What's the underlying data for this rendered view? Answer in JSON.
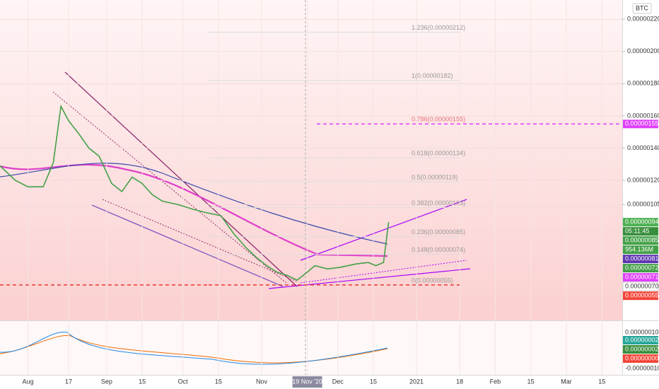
{
  "chart_data": {
    "type": "line",
    "currency": "BTC",
    "x": [
      "2020-07-21",
      "2020-07-27",
      "2020-08-01",
      "2020-08-07",
      "2020-08-11",
      "2020-08-14",
      "2020-08-17",
      "2020-08-21",
      "2020-08-25",
      "2020-08-29",
      "2020-09-03",
      "2020-09-07",
      "2020-09-11",
      "2020-09-15",
      "2020-09-19",
      "2020-09-23",
      "2020-09-29",
      "2020-10-05",
      "2020-10-10",
      "2020-10-16",
      "2020-10-21",
      "2020-10-26",
      "2020-10-30",
      "2020-11-03",
      "2020-11-07",
      "2020-11-11",
      "2020-11-15",
      "2020-11-19",
      "2020-11-22",
      "2020-11-27",
      "2020-12-02",
      "2020-12-08",
      "2020-12-13",
      "2020-12-16",
      "2020-12-19",
      "2020-12-21"
    ],
    "series": [
      {
        "color": "#43a047",
        "values": [
          1.29e-06,
          1.2e-06,
          1.16e-06,
          1.16e-06,
          1.31e-06,
          1.66e-06,
          1.57e-06,
          1.49e-06,
          1.4e-06,
          1.35e-06,
          1.18e-06,
          1.13e-06,
          1.22e-06,
          1.18e-06,
          1.11e-06,
          1.07e-06,
          1.05e-06,
          1.02e-06,
          1e-06,
          9.8e-07,
          8.7e-07,
          7.8e-07,
          7.2e-07,
          6.7e-07,
          6.3e-07,
          6.1e-07,
          5.8e-07,
          6.3e-07,
          6.7e-07,
          6.5e-07,
          6.6e-07,
          6.8e-07,
          6.9e-07,
          6.7e-07,
          6.9e-07,
          9.4e-07
        ]
      }
    ],
    "xlim": [
      "2020-07-21",
      "2021-03-23"
    ],
    "xticks": [
      {
        "value": "2020-08-01",
        "label": "Aug"
      },
      {
        "value": "2020-08-17",
        "label": "17"
      },
      {
        "value": "2020-09-01",
        "label": "Sep"
      },
      {
        "value": "2020-09-15",
        "label": "15"
      },
      {
        "value": "2020-10-01",
        "label": "Oct"
      },
      {
        "value": "2020-10-15",
        "label": "15"
      },
      {
        "value": "2020-11-01",
        "label": "Nov"
      },
      {
        "value": "2020-11-19",
        "label": "19 Nov '20"
      },
      {
        "value": "2020-12-01",
        "label": "Dec"
      },
      {
        "value": "2020-12-15",
        "label": "15"
      },
      {
        "value": "2021-01-01",
        "label": "2021"
      },
      {
        "value": "2021-01-18",
        "label": "18"
      },
      {
        "value": "2021-02-01",
        "label": "Feb"
      },
      {
        "value": "2021-02-15",
        "label": "15"
      },
      {
        "value": "2021-03-01",
        "label": "Mar"
      },
      {
        "value": "2021-03-15",
        "label": "15"
      }
    ],
    "highlight_xtick": 7,
    "ylim": [
      3.3e-07,
      2.32e-06
    ],
    "yticks": [
      {
        "value": 2.2e-06,
        "label": "0.00000220"
      },
      {
        "value": 2e-06,
        "label": "0.00000200"
      },
      {
        "value": 1.8e-06,
        "label": "0.00000180"
      },
      {
        "value": 1.6e-06,
        "label": "0.00000160"
      },
      {
        "value": 1.4e-06,
        "label": "0.00000140"
      },
      {
        "value": 1.2e-06,
        "label": "0.00000120"
      },
      {
        "value": 1.05e-06,
        "label": "0.00000105"
      }
    ],
    "fib_levels": [
      {
        "label": "0(0.00000055)",
        "value": 5.5e-07
      },
      {
        "label": "0.148(0.00000074)",
        "value": 7.4e-07
      },
      {
        "label": "0.236(0.00000085)",
        "value": 8.5e-07
      },
      {
        "label": "0.382(0.00000103)",
        "value": 1.03e-06
      },
      {
        "label": "0.5(0.00000119)",
        "value": 1.19e-06
      },
      {
        "label": "0.618(0.00000134)",
        "value": 1.34e-06
      },
      {
        "label": "0.786(0.00000155)",
        "value": 1.55e-06
      },
      {
        "label": "1(0.00000182)",
        "value": 1.82e-06
      },
      {
        "label": "1.236(0.00000212)",
        "value": 2.12e-06
      }
    ],
    "price_tags": [
      {
        "label": "0.00000155",
        "value": 1.55e-06,
        "color": "#e040fb"
      },
      {
        "label": "0.00000094",
        "value": 9.4e-07,
        "color": "#4caf50"
      },
      {
        "label": "05:11:45",
        "color": "#388e3c"
      },
      {
        "label": "0.00000085",
        "value": 8.5e-07,
        "color": "#43a047"
      },
      {
        "label": "954.136M",
        "color": "#43a047"
      },
      {
        "label": "0.00000081",
        "value": 8.1e-07,
        "color": "#5e35b1"
      },
      {
        "label": "0.00000072",
        "value": 7.2e-07,
        "color": "#43a047"
      },
      {
        "label": "0.00000071",
        "value": 7.1e-07,
        "color": "#e040fb"
      },
      {
        "label": "0.00000070",
        "value": 7e-07,
        "color": "#ffffff"
      },
      {
        "label": "0.00000055",
        "value": 5.5e-07,
        "color": "#f44336"
      }
    ],
    "macd_axis": [
      {
        "label": "0.00000010"
      },
      {
        "label": "0.00000002",
        "color": "#26a69a"
      },
      {
        "label": "0.00000002",
        "color": "#388e3c"
      },
      {
        "label": "0.00000000",
        "color": "#f44336"
      },
      {
        "label": "-0.00000010"
      }
    ]
  }
}
